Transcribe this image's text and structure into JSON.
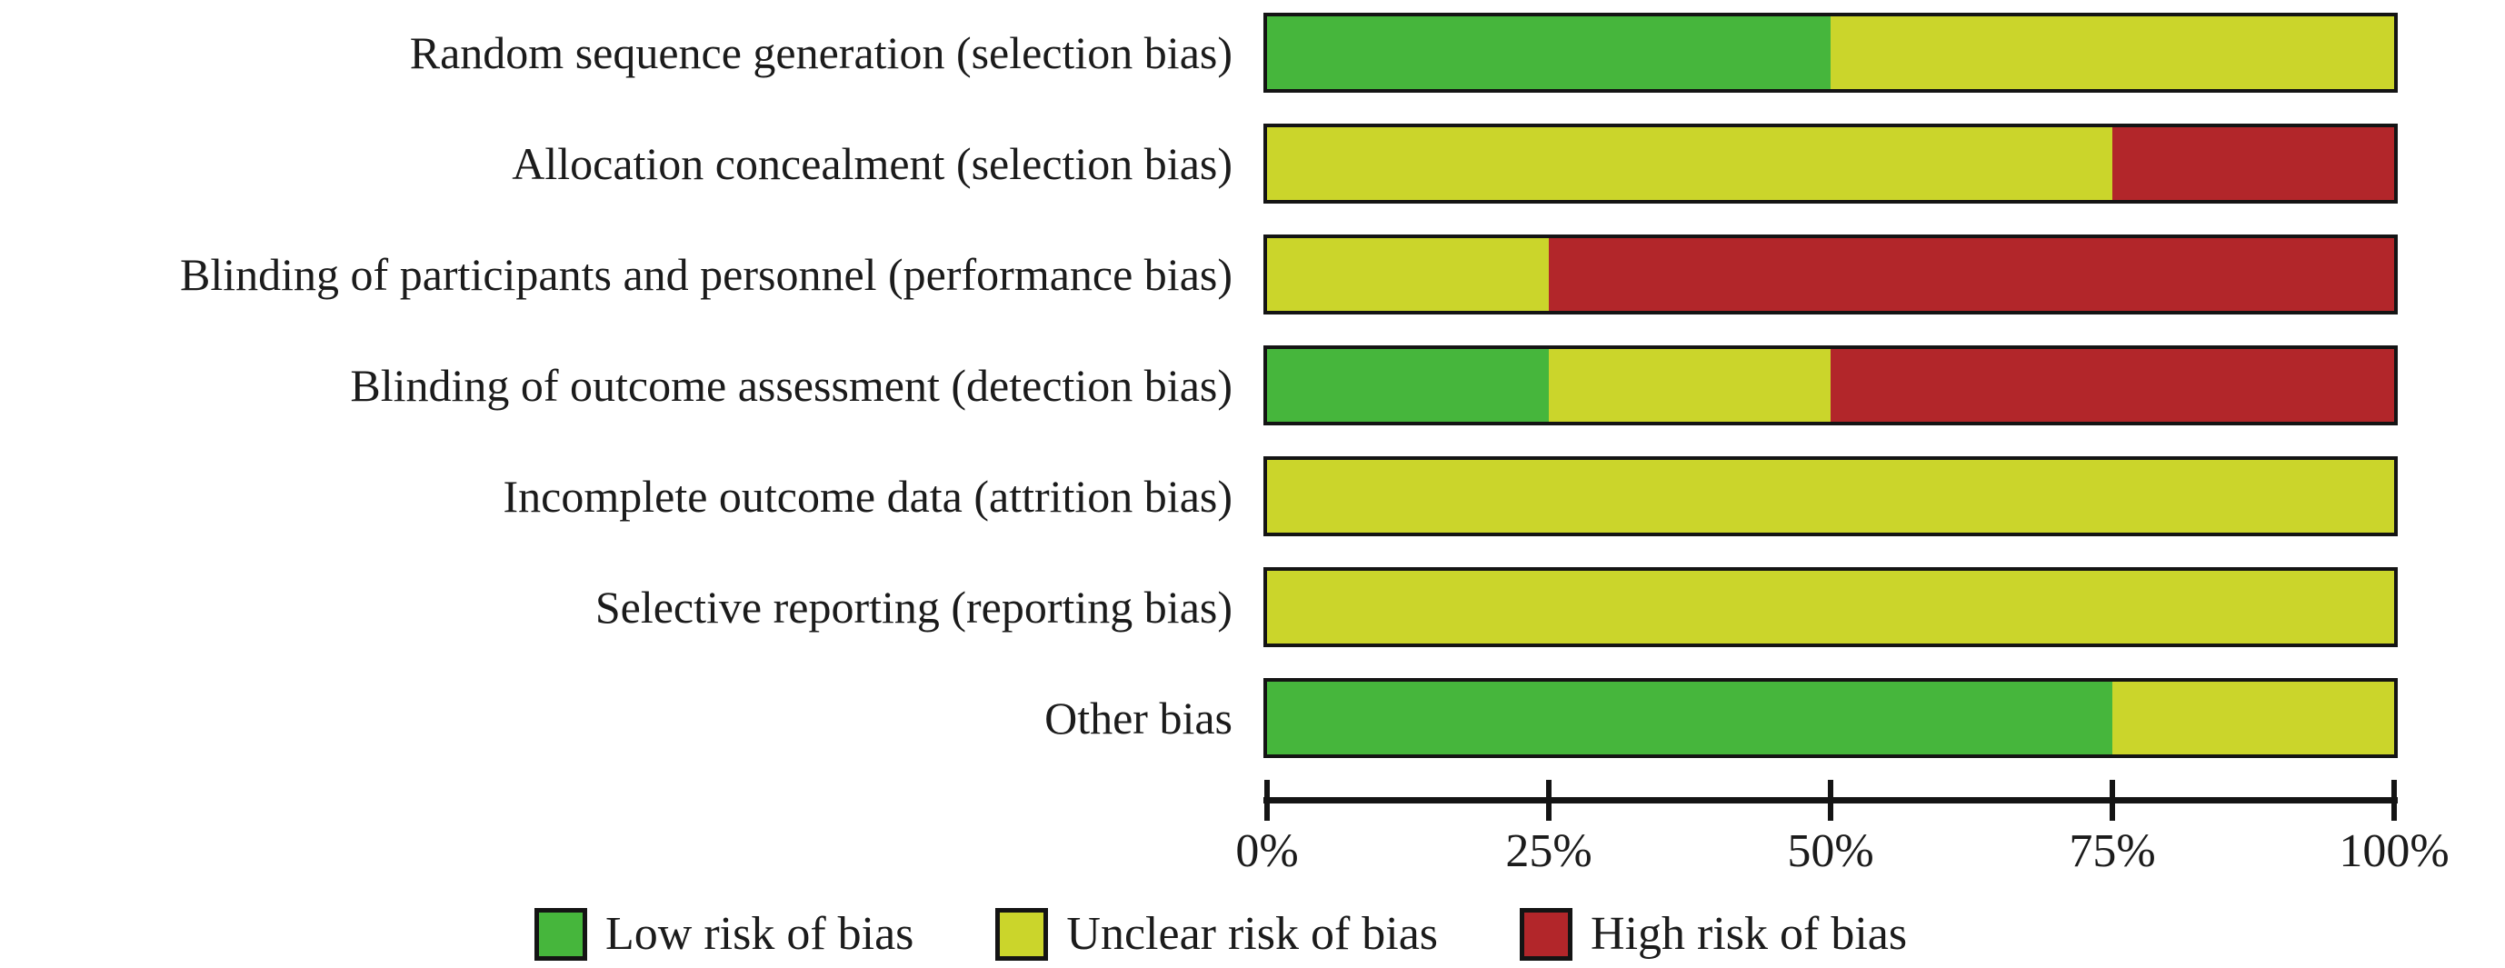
{
  "figure": {
    "kind": "risk-of-bias-summary-figure",
    "background": "#ffffff",
    "text_color": "#1b1b1b",
    "axis_color": "#141414",
    "bar_border_color": "#141414"
  },
  "chart_data": {
    "type": "bar",
    "orientation": "horizontal",
    "stacked": true,
    "unit": "percent",
    "title": "",
    "xlabel": "",
    "ylabel": "",
    "grid": false,
    "categories": [
      "Random sequence generation (selection bias)",
      "Allocation concealment (selection bias)",
      "Blinding of participants and personnel (performance bias)",
      "Blinding of outcome assessment (detection bias)",
      "Incomplete outcome data (attrition bias)",
      "Selective reporting (reporting bias)",
      "Other bias"
    ],
    "series": [
      {
        "name": "Low risk of bias",
        "color": "#46b63c",
        "values": [
          50,
          0,
          0,
          25,
          0,
          0,
          75
        ]
      },
      {
        "name": "Unclear risk of bias",
        "color": "#cbd52b",
        "values": [
          50,
          75,
          25,
          25,
          100,
          100,
          25
        ]
      },
      {
        "name": "High risk of bias",
        "color": "#b2262a",
        "values": [
          0,
          25,
          75,
          50,
          0,
          0,
          0
        ]
      }
    ],
    "x_axis": {
      "range": [
        0,
        100
      ],
      "tick_values": [
        0,
        25,
        50,
        75,
        100
      ],
      "tick_labels": [
        "0%",
        "25%",
        "50%",
        "75%",
        "100%"
      ]
    },
    "legend": {
      "position": "bottom",
      "items": [
        {
          "label": "Low risk of bias",
          "color": "#46b63c"
        },
        {
          "label": "Unclear risk of bias",
          "color": "#cbd52b"
        },
        {
          "label": "High risk of bias",
          "color": "#b2262a"
        }
      ]
    }
  }
}
